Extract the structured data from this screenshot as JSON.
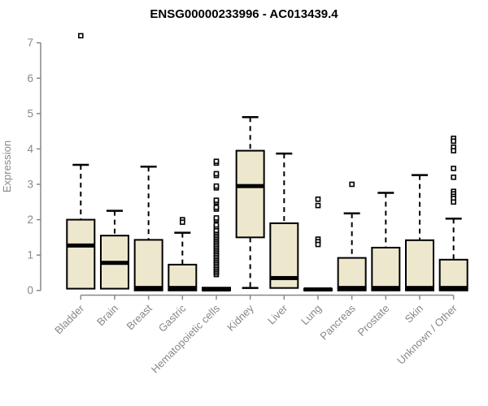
{
  "page": {
    "background": "#ffffff"
  },
  "chart_data": {
    "type": "boxplot",
    "title": "ENSG00000233996 - AC013439.4",
    "ylabel": "Expression",
    "xlabel": "",
    "ylim": [
      0,
      7
    ],
    "yticks": [
      0,
      1,
      2,
      3,
      4,
      5,
      6,
      7
    ],
    "grid": false,
    "legend": "none",
    "colors": {
      "box_fill": "#EDE8CD",
      "box_stroke": "#000000",
      "median": "#000000",
      "whisker": "#000000",
      "axis": "#888888",
      "tick_label": "#888888",
      "title": "#000000",
      "background": "#ffffff"
    },
    "categories": [
      "Bladder",
      "Brain",
      "Breast",
      "Gastric",
      "Hematopoietic cells",
      "Kidney",
      "Liver",
      "Lung",
      "Pancreas",
      "Prostate",
      "Skin",
      "Unknown / Other"
    ],
    "series": [
      {
        "name": "Bladder",
        "q1": 0.05,
        "median": 1.27,
        "q3": 2.0,
        "whisker_low": 0.05,
        "whisker_high": 3.55,
        "outliers": [
          7.2
        ]
      },
      {
        "name": "Brain",
        "q1": 0.05,
        "median": 0.78,
        "q3": 1.55,
        "whisker_low": 0.05,
        "whisker_high": 2.25,
        "outliers": []
      },
      {
        "name": "Breast",
        "q1": 0.0,
        "median": 0.07,
        "q3": 1.43,
        "whisker_low": 0.0,
        "whisker_high": 3.5,
        "outliers": []
      },
      {
        "name": "Gastric",
        "q1": 0.0,
        "median": 0.07,
        "q3": 0.73,
        "whisker_low": 0.0,
        "whisker_high": 1.63,
        "outliers": [
          2.0,
          1.93
        ]
      },
      {
        "name": "Hematopoietic cells",
        "q1": 0.0,
        "median": 0.03,
        "q3": 0.08,
        "whisker_low": 0.0,
        "whisker_high": 0.08,
        "outliers": [
          0.45,
          0.5,
          0.55,
          0.6,
          0.65,
          0.7,
          0.75,
          0.8,
          0.85,
          0.9,
          0.95,
          1.0,
          1.05,
          1.1,
          1.15,
          1.2,
          1.25,
          1.3,
          1.35,
          1.4,
          1.45,
          1.5,
          1.55,
          1.6,
          1.65,
          1.7,
          1.8,
          1.85,
          2.0,
          2.05,
          2.3,
          2.35,
          2.5,
          2.55,
          2.9,
          2.95,
          3.25,
          3.3,
          3.6,
          3.65
        ]
      },
      {
        "name": "Kidney",
        "q1": 1.5,
        "median": 2.95,
        "q3": 3.95,
        "whisker_low": 0.07,
        "whisker_high": 4.9,
        "outliers": []
      },
      {
        "name": "Liver",
        "q1": 0.07,
        "median": 0.35,
        "q3": 1.9,
        "whisker_low": 0.05,
        "whisker_high": 3.87,
        "outliers": []
      },
      {
        "name": "Lung",
        "q1": 0.0,
        "median": 0.03,
        "q3": 0.05,
        "whisker_low": 0.0,
        "whisker_high": 0.05,
        "outliers": [
          2.58,
          2.4,
          1.45,
          1.38,
          1.3
        ]
      },
      {
        "name": "Pancreas",
        "q1": 0.0,
        "median": 0.07,
        "q3": 0.92,
        "whisker_low": 0.0,
        "whisker_high": 2.18,
        "outliers": [
          3.0
        ]
      },
      {
        "name": "Prostate",
        "q1": 0.0,
        "median": 0.07,
        "q3": 1.21,
        "whisker_low": 0.0,
        "whisker_high": 2.76,
        "outliers": []
      },
      {
        "name": "Skin",
        "q1": 0.0,
        "median": 0.07,
        "q3": 1.42,
        "whisker_low": 0.0,
        "whisker_high": 3.26,
        "outliers": []
      },
      {
        "name": "Unknown / Other",
        "q1": 0.0,
        "median": 0.07,
        "q3": 0.87,
        "whisker_low": 0.0,
        "whisker_high": 2.03,
        "outliers": [
          4.3,
          4.22,
          4.05,
          3.95,
          3.45,
          3.2,
          2.8,
          2.73,
          2.66,
          2.6,
          2.5
        ]
      }
    ]
  }
}
